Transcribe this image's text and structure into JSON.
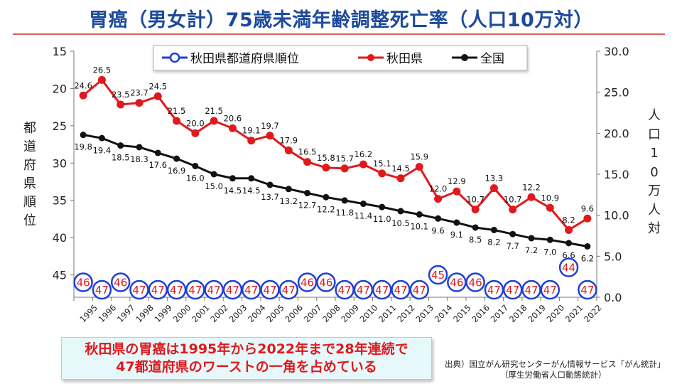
{
  "title": "胃癌（男女計）75歳未満年齢調整死亡率（人口10万対）",
  "y_label_left": "都道府県順位",
  "y_label_right": "人口10万人対",
  "legend": [
    "秋田県都道府県順位",
    "秋田県",
    "全国"
  ],
  "callout": {
    "line1": "秋田県の胃癌は1995年から2022年まで28年連続で",
    "line2": "47都道府県のワーストの一角を占めている"
  },
  "source": {
    "line1": "出典）国立がん研究センターがん情報サービス「がん統計」",
    "line2": "（厚生労働省人口動態統計）"
  },
  "chart_data": {
    "type": "line",
    "x": [
      "1995",
      "1996",
      "1997",
      "1998",
      "1999",
      "2000",
      "2001",
      "2002",
      "2003",
      "2004",
      "2005",
      "2006",
      "2007",
      "2008",
      "2009",
      "2010",
      "2011",
      "2012",
      "2013",
      "2014",
      "2015",
      "2016",
      "2017",
      "2018",
      "2019",
      "2020",
      "2021",
      "2022"
    ],
    "left_axis": {
      "label": "都道府県順位",
      "range": [
        15,
        48
      ],
      "ticks": [
        15,
        20,
        25,
        30,
        35,
        40,
        45
      ],
      "inverted": true
    },
    "right_axis": {
      "label": "人口10万人対",
      "range": [
        0,
        30
      ],
      "ticks": [
        "0.0",
        "5.0",
        "10.0",
        "15.0",
        "20.0",
        "25.0",
        "30.0"
      ]
    },
    "series": [
      {
        "name": "秋田県都道府県順位",
        "axis": "left",
        "color": "#1f3fd6",
        "marker": "open-circle",
        "values": [
          46,
          47,
          46,
          47,
          47,
          47,
          47,
          47,
          47,
          47,
          47,
          47,
          46,
          46,
          47,
          47,
          47,
          47,
          47,
          45,
          46,
          46,
          47,
          47,
          47,
          47,
          44,
          47
        ]
      },
      {
        "name": "秋田県",
        "axis": "right",
        "color": "#e0191d",
        "marker": "filled-circle",
        "values": [
          24.6,
          26.5,
          23.5,
          23.7,
          24.5,
          21.5,
          20.0,
          21.5,
          20.6,
          19.1,
          19.7,
          17.9,
          16.5,
          15.8,
          15.7,
          16.2,
          15.1,
          14.5,
          15.9,
          12.0,
          12.9,
          10.7,
          13.3,
          10.7,
          12.2,
          10.9,
          8.2,
          9.6
        ]
      },
      {
        "name": "全国",
        "axis": "right",
        "color": "#111111",
        "marker": "filled-circle",
        "values": [
          19.8,
          19.4,
          18.5,
          18.3,
          17.6,
          16.9,
          16.0,
          15.0,
          14.5,
          14.5,
          13.7,
          13.2,
          12.7,
          12.2,
          11.8,
          11.4,
          11.0,
          10.5,
          10.1,
          9.6,
          9.1,
          8.5,
          8.2,
          7.7,
          7.2,
          7.0,
          6.6,
          6.2
        ]
      }
    ],
    "legend_position": "top",
    "grid": false
  }
}
